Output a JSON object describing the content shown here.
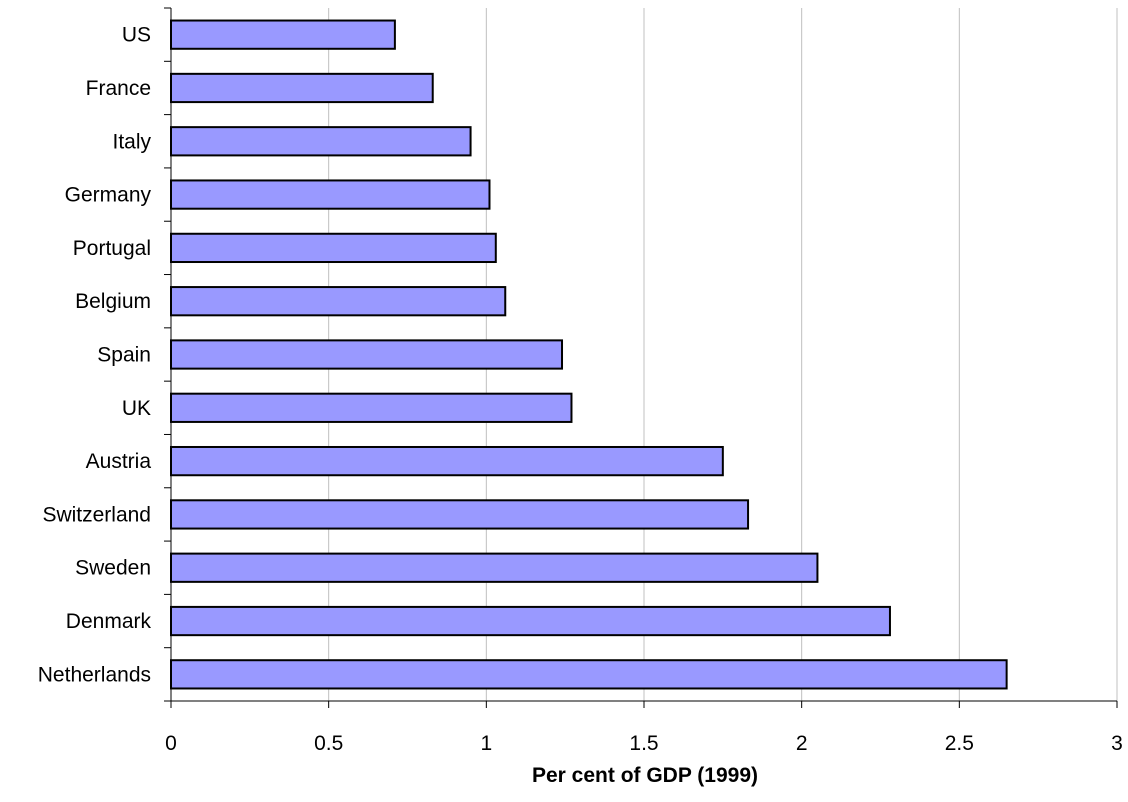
{
  "chart_data": {
    "type": "bar",
    "orientation": "horizontal",
    "categories": [
      "US",
      "France",
      "Italy",
      "Germany",
      "Portugal",
      "Belgium",
      "Spain",
      "UK",
      "Austria",
      "Switzerland",
      "Sweden",
      "Denmark",
      "Netherlands"
    ],
    "values": [
      0.71,
      0.83,
      0.95,
      1.01,
      1.03,
      1.06,
      1.24,
      1.27,
      1.75,
      1.83,
      2.05,
      2.28,
      2.65
    ],
    "xlabel": "Per cent of GDP (1999)",
    "ylabel": "",
    "title": "",
    "xlim": [
      0,
      3
    ],
    "xticks": [
      "0",
      "0.5",
      "1",
      "1.5",
      "2",
      "2.5",
      "3"
    ],
    "grid": "vertical",
    "legend": "none",
    "colors": {
      "bar_fill": "#9999ff",
      "bar_stroke": "#000000",
      "grid": "#c0c0c0",
      "axis": "#000000"
    }
  }
}
